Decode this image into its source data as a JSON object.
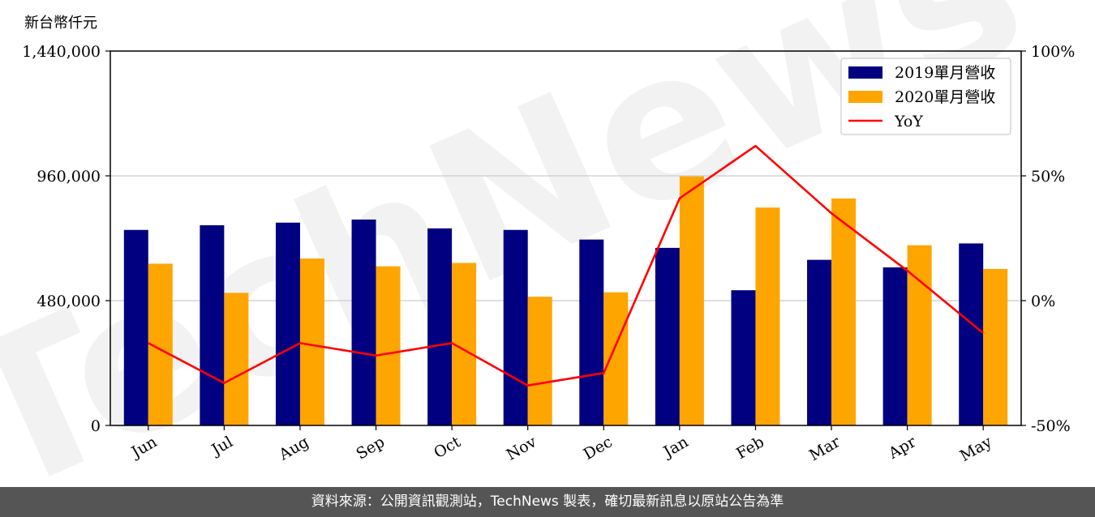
{
  "chart_data": {
    "type": "bar",
    "y_unit_label": "新台幣仟元",
    "categories": [
      "Jun",
      "Jul",
      "Aug",
      "Sep",
      "Oct",
      "Nov",
      "Dec",
      "Jan",
      "Feb",
      "Mar",
      "Apr",
      "May"
    ],
    "series": [
      {
        "name": "2019單月營收",
        "type": "bar",
        "axis": "left",
        "color": "#000080",
        "values": [
          752000,
          770000,
          780000,
          792000,
          758000,
          752000,
          715000,
          683000,
          520000,
          637000,
          608000,
          700000
        ]
      },
      {
        "name": "2020單月營收",
        "type": "bar",
        "axis": "left",
        "color": "#ffa500",
        "values": [
          622000,
          510000,
          642000,
          612000,
          625000,
          495000,
          512000,
          958000,
          838000,
          873000,
          693000,
          602000
        ]
      },
      {
        "name": "YoY",
        "type": "line",
        "axis": "right",
        "color": "#ff0000",
        "unit": "%",
        "values": [
          -17,
          -33,
          -17,
          -22,
          -17,
          -34,
          -29,
          41,
          62,
          35,
          12,
          -13
        ]
      }
    ],
    "y_left": {
      "min": 0,
      "max": 1440000,
      "ticks": [
        "0",
        "480,000",
        "960,000",
        "1,440,000"
      ],
      "tick_values": [
        0,
        480000,
        960000,
        1440000
      ]
    },
    "y_right": {
      "min": -50,
      "max": 100,
      "ticks": [
        "-50%",
        "0%",
        "50%",
        "100%"
      ],
      "tick_values": [
        -50,
        0,
        50,
        100
      ]
    },
    "grid": "horizontal",
    "legend_position": "top-right",
    "watermark": "TechNews"
  },
  "footer": {
    "source_text": "資料來源：公開資訊觀測站，TechNews 製表，確切最新訊息以原站公告為準"
  }
}
